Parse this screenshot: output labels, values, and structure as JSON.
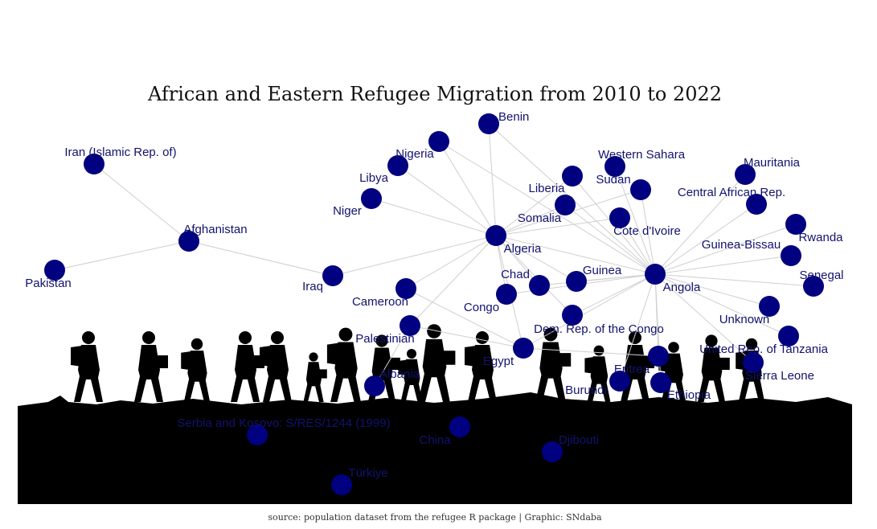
{
  "title": "African and Eastern Refugee Migration from 2010 to 2022",
  "caption": "source: population dataset from the refugee R package | Graphic: SNdaba",
  "colors": {
    "node": "#000080",
    "edge": "#cfcfcf",
    "label": "#12126e",
    "silhouette": "#000000"
  },
  "nodes": [
    {
      "id": "benin",
      "label": "Benin"
    },
    {
      "id": "nigeria",
      "label": "Nigeria"
    },
    {
      "id": "iran",
      "label": "Iran (Islamic Rep. of)"
    },
    {
      "id": "libya",
      "label": "Libya"
    },
    {
      "id": "niger",
      "label": "Niger"
    },
    {
      "id": "western-sahara",
      "label": "Western Sahara"
    },
    {
      "id": "sudan",
      "label": "Sudan"
    },
    {
      "id": "liberia",
      "label": "Liberia"
    },
    {
      "id": "mauritania",
      "label": "Mauritania"
    },
    {
      "id": "central-african-rep",
      "label": "Central African Rep."
    },
    {
      "id": "somalia",
      "label": "Somalia"
    },
    {
      "id": "cote-divoire",
      "label": "Cote d'Ivoire"
    },
    {
      "id": "afghanistan",
      "label": "Afghanistan"
    },
    {
      "id": "rwanda",
      "label": "Rwanda"
    },
    {
      "id": "pakistan",
      "label": "Pakistan"
    },
    {
      "id": "algeria",
      "label": "Algeria"
    },
    {
      "id": "guinea-bissau",
      "label": "Guinea-Bissau"
    },
    {
      "id": "iraq",
      "label": "Iraq"
    },
    {
      "id": "guinea",
      "label": "Guinea"
    },
    {
      "id": "chad",
      "label": "Chad"
    },
    {
      "id": "angola",
      "label": "Angola"
    },
    {
      "id": "senegal",
      "label": "Senegal"
    },
    {
      "id": "cameroon",
      "label": "Cameroon"
    },
    {
      "id": "congo",
      "label": "Congo"
    },
    {
      "id": "unknown",
      "label": "Unknown"
    },
    {
      "id": "dem-rep-congo",
      "label": "Dem. Rep. of the Congo"
    },
    {
      "id": "palestinian",
      "label": "Palestinian"
    },
    {
      "id": "tanzania",
      "label": "United Rep. of Tanzania"
    },
    {
      "id": "egypt",
      "label": "Egypt"
    },
    {
      "id": "eritrea",
      "label": "Eritrea"
    },
    {
      "id": "sierra-leone",
      "label": "Sierra Leone"
    },
    {
      "id": "albania",
      "label": "Albania"
    },
    {
      "id": "burundi",
      "label": "Burundi"
    },
    {
      "id": "ethiopia",
      "label": "Ethiopia"
    },
    {
      "id": "serbia-kosovo",
      "label": "Serbia and Kosovo: S/RES/1244 (1999)"
    },
    {
      "id": "china",
      "label": "China"
    },
    {
      "id": "djibouti",
      "label": "Djibouti"
    },
    {
      "id": "turkiye",
      "label": "Türkiye"
    }
  ],
  "edges": [
    [
      "iran",
      "afghanistan"
    ],
    [
      "pakistan",
      "afghanistan"
    ],
    [
      "afghanistan",
      "iraq"
    ],
    [
      "iraq",
      "algeria"
    ],
    [
      "benin",
      "algeria"
    ],
    [
      "nigeria",
      "algeria"
    ],
    [
      "libya",
      "algeria"
    ],
    [
      "niger",
      "algeria"
    ],
    [
      "liberia",
      "algeria"
    ],
    [
      "somalia",
      "algeria"
    ],
    [
      "cote-divoire",
      "algeria"
    ],
    [
      "sudan",
      "algeria"
    ],
    [
      "cameroon",
      "algeria"
    ],
    [
      "congo",
      "algeria"
    ],
    [
      "chad",
      "algeria"
    ],
    [
      "guinea",
      "algeria"
    ],
    [
      "dem-rep-congo",
      "algeria"
    ],
    [
      "egypt",
      "algeria"
    ],
    [
      "palestinian",
      "algeria"
    ],
    [
      "benin",
      "angola"
    ],
    [
      "nigeria",
      "angola"
    ],
    [
      "western-sahara",
      "angola"
    ],
    [
      "sudan",
      "angola"
    ],
    [
      "liberia",
      "angola"
    ],
    [
      "mauritania",
      "angola"
    ],
    [
      "central-african-rep",
      "angola"
    ],
    [
      "somalia",
      "angola"
    ],
    [
      "cote-divoire",
      "angola"
    ],
    [
      "rwanda",
      "angola"
    ],
    [
      "guinea-bissau",
      "angola"
    ],
    [
      "senegal",
      "angola"
    ],
    [
      "unknown",
      "angola"
    ],
    [
      "tanzania",
      "angola"
    ],
    [
      "sierra-leone",
      "angola"
    ],
    [
      "eritrea",
      "angola"
    ],
    [
      "ethiopia",
      "angola"
    ],
    [
      "burundi",
      "angola"
    ],
    [
      "guinea",
      "angola"
    ],
    [
      "chad",
      "angola"
    ],
    [
      "dem-rep-congo",
      "angola"
    ],
    [
      "congo",
      "angola"
    ],
    [
      "egypt",
      "angola"
    ],
    [
      "algeria",
      "angola"
    ],
    [
      "cameroon",
      "egypt"
    ],
    [
      "palestinian",
      "egypt"
    ],
    [
      "albania",
      "palestinian"
    ],
    [
      "eritrea",
      "egypt"
    ]
  ]
}
